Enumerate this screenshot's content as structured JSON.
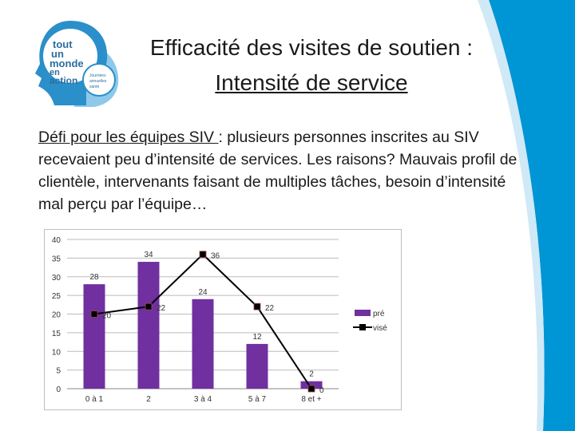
{
  "title": {
    "line1": "Efficacité des visites de soutien :",
    "line2": "Intensité de service"
  },
  "logo": {
    "text": "tout un monde en action",
    "subtext": "Journées annuelles de santé mentale"
  },
  "body": {
    "lead": "Défi pour les équipes SIV ",
    "rest": ": plusieurs personnes inscrites au SIV recevaient peu d’intensité de services. Les raisons? Mauvais profil de clientèle, intervenants faisant de multiples tâches, besoin d’intensité mal perçu par l’équipe…"
  },
  "colors": {
    "accent": "#0095d5",
    "bar": "#7030a0",
    "line": "#000000"
  },
  "chart_data": {
    "type": "bar+line",
    "categories": [
      "0 à 1",
      "2",
      "3 à 4",
      "5 à 7",
      "8 et +"
    ],
    "series": [
      {
        "name": "pré",
        "type": "bar",
        "values": [
          28,
          34,
          24,
          12,
          2
        ]
      },
      {
        "name": "visé",
        "type": "line",
        "values": [
          20,
          22,
          36,
          22,
          0
        ]
      }
    ],
    "ylim": [
      0,
      40
    ],
    "yticks": [
      0,
      5,
      10,
      15,
      20,
      25,
      30,
      35,
      40
    ],
    "grid": true,
    "legend": "right"
  }
}
